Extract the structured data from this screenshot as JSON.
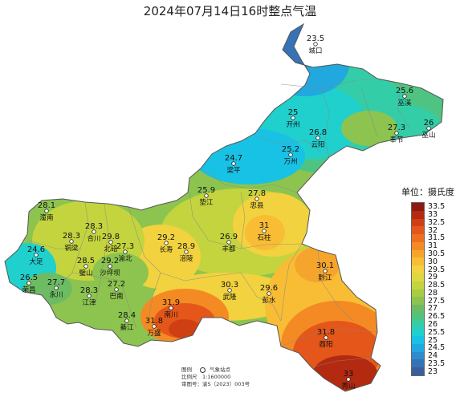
{
  "title": "2024年07月14日16时整点气温",
  "legend": {
    "title": "单位：摄氏度",
    "levels": [
      {
        "label": "33.5",
        "color": "#8c1a10"
      },
      {
        "label": "33",
        "color": "#b32a10"
      },
      {
        "label": "32.5",
        "color": "#cf3f14"
      },
      {
        "label": "32",
        "color": "#e4561a"
      },
      {
        "label": "31.5",
        "color": "#ef6f1e"
      },
      {
        "label": "31",
        "color": "#f48a24"
      },
      {
        "label": "30.5",
        "color": "#f6a52c"
      },
      {
        "label": "30",
        "color": "#f8bd35"
      },
      {
        "label": "29.5",
        "color": "#f2d23e"
      },
      {
        "label": "29",
        "color": "#dcd83f"
      },
      {
        "label": "28.5",
        "color": "#c4d43f"
      },
      {
        "label": "28",
        "color": "#a8cc44"
      },
      {
        "label": "27.5",
        "color": "#8cc44f"
      },
      {
        "label": "27",
        "color": "#6dbc63"
      },
      {
        "label": "26.5",
        "color": "#4fc482"
      },
      {
        "label": "26",
        "color": "#33cda8"
      },
      {
        "label": "25.5",
        "color": "#1fd0cd"
      },
      {
        "label": "25",
        "color": "#18c2e4"
      },
      {
        "label": "24.5",
        "color": "#21a8df"
      },
      {
        "label": "24",
        "color": "#2d8ccc"
      },
      {
        "label": "23.5",
        "color": "#3673b6"
      },
      {
        "label": "23",
        "color": "#3a5e9c"
      }
    ]
  },
  "stations": [
    {
      "name": "城口",
      "temp": "23.5",
      "color": "#3e6ea8"
    },
    {
      "name": "巫溪",
      "temp": "25.6",
      "color": "#22cbd6"
    },
    {
      "name": "开州",
      "temp": "25",
      "color": "#18c2e4"
    },
    {
      "name": "云阳",
      "temp": "26.8",
      "color": "#5fbc73"
    },
    {
      "name": "奉节",
      "temp": "27.3",
      "color": "#80c257"
    },
    {
      "name": "巫山",
      "temp": "26",
      "color": "#33cda8"
    },
    {
      "name": "梁平",
      "temp": "24.7",
      "color": "#1eb5e2"
    },
    {
      "name": "万州",
      "temp": "25.2",
      "color": "#1cc6dc"
    },
    {
      "name": "垫江",
      "temp": "25.9",
      "color": "#2dcdb0"
    },
    {
      "name": "忠县",
      "temp": "27.8",
      "color": "#a0ca47"
    },
    {
      "name": "潼南",
      "temp": "28.1",
      "color": "#aecd43"
    },
    {
      "name": "铜梁",
      "temp": "28.3",
      "color": "#b7d041"
    },
    {
      "name": "合川",
      "temp": "28.3",
      "color": "#b7d041"
    },
    {
      "name": "北碚",
      "temp": "29.8",
      "color": "#f5c93a"
    },
    {
      "name": "渝北",
      "temp": "27.3",
      "color": "#80c257"
    },
    {
      "name": "长寿",
      "temp": "29.2",
      "color": "#e3d93f"
    },
    {
      "name": "丰都",
      "temp": "26.9",
      "color": "#66bc6a"
    },
    {
      "name": "石柱",
      "temp": "31",
      "color": "#f48a24"
    },
    {
      "name": "大足",
      "temp": "24.6",
      "color": "#1fb3e1"
    },
    {
      "name": "璧山",
      "temp": "28.5",
      "color": "#c4d43f"
    },
    {
      "name": "沙坪坝",
      "temp": "29.2",
      "color": "#e3d93f"
    },
    {
      "name": "涪陵",
      "temp": "28.9",
      "color": "#d6d73f"
    },
    {
      "name": "荣昌",
      "temp": "26.5",
      "color": "#4fc482"
    },
    {
      "name": "永川",
      "temp": "27.7",
      "color": "#98c84a"
    },
    {
      "name": "江津",
      "temp": "28.3",
      "color": "#b7d041"
    },
    {
      "name": "巴南",
      "temp": "27.2",
      "color": "#7ac05b"
    },
    {
      "name": "武隆",
      "temp": "30.3",
      "color": "#f7b030"
    },
    {
      "name": "彭水",
      "temp": "29.6",
      "color": "#f0d03c"
    },
    {
      "name": "黔江",
      "temp": "30.1",
      "color": "#f8bb34"
    },
    {
      "name": "綦江",
      "temp": "28.4",
      "color": "#bdd240"
    },
    {
      "name": "南川",
      "temp": "31.9",
      "color": "#e6591a"
    },
    {
      "name": "万盛",
      "temp": "31.8",
      "color": "#e85e1b"
    },
    {
      "name": "酉阳",
      "temp": "31.8",
      "color": "#e85e1b"
    },
    {
      "name": "秀山",
      "temp": "33",
      "color": "#b32a10"
    }
  ],
  "footnote": {
    "legend_label": "图例",
    "station_label": "气象站点",
    "scale": "比例尺　1:1600000",
    "map_review": "审图号：渝S（2023）003号"
  }
}
